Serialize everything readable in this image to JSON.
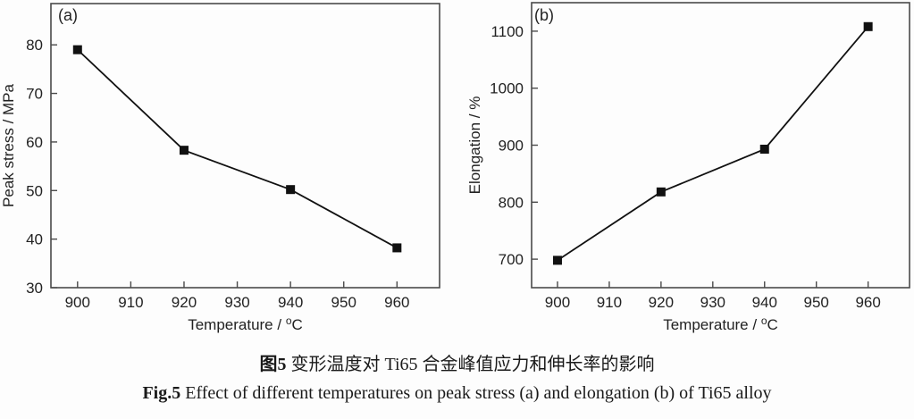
{
  "caption": {
    "zh_label": "图5",
    "zh_text": " 变形温度对 Ti65 合金峰值应力和伸长率的影响",
    "en_label": "Fig.5",
    "en_text": " Effect of different temperatures on peak stress (a) and elongation (b) of Ti65 alloy"
  },
  "colors": {
    "line": "#111111",
    "frame": "#4a4a4a",
    "text": "#222222",
    "background": "#fdfdfd"
  },
  "chart_data": [
    {
      "type": "line",
      "panel_label": "(a)",
      "x": [
        900,
        920,
        940,
        960
      ],
      "values": [
        79,
        58.3,
        50.2,
        38.2
      ],
      "series_name": "Peak stress",
      "xlabel": "Temperature / °C",
      "ylabel": "Peak stress / MPa",
      "x_ticks": [
        900,
        910,
        920,
        930,
        940,
        950,
        960
      ],
      "y_ticks": [
        30,
        40,
        50,
        60,
        70,
        80
      ],
      "xlim": [
        895,
        968
      ],
      "ylim": [
        30,
        88.5
      ],
      "marker": "filled-square",
      "grid": false,
      "legend": "none"
    },
    {
      "type": "line",
      "panel_label": "(b)",
      "x": [
        900,
        920,
        940,
        960
      ],
      "values": [
        698,
        818,
        893,
        1108
      ],
      "series_name": "Elongation",
      "xlabel": "Temperature / °C",
      "ylabel": "Elongation / %",
      "x_ticks": [
        900,
        910,
        920,
        930,
        940,
        950,
        960
      ],
      "y_ticks": [
        700,
        800,
        900,
        1000,
        1100
      ],
      "xlim": [
        895,
        968
      ],
      "ylim": [
        650,
        1150
      ],
      "marker": "filled-square",
      "grid": false,
      "legend": "none"
    }
  ]
}
